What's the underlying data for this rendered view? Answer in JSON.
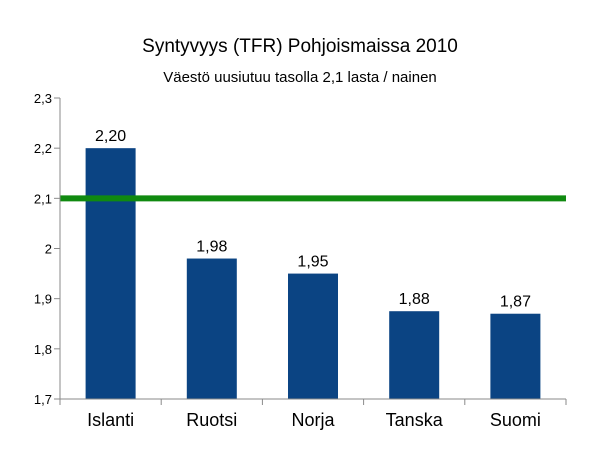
{
  "chart_data": {
    "type": "bar",
    "title": "Syntyvyys (TFR) Pohjoismaissa 2010",
    "subtitle": "Väestö uusiutuu tasolla 2,1 lasta / nainen",
    "xlabel": "",
    "ylabel": "",
    "categories": [
      "Islanti",
      "Ruotsi",
      "Norja",
      "Tanska",
      "Suomi"
    ],
    "values": [
      2.2,
      1.98,
      1.95,
      1.875,
      1.87
    ],
    "data_labels": [
      "2,20",
      "1,98",
      "1,95",
      "1,88",
      "1,87"
    ],
    "ylim": [
      1.7,
      2.3
    ],
    "yticks": [
      1.7,
      1.8,
      1.9,
      2.0,
      2.1,
      2.2,
      2.3
    ],
    "ytick_labels": [
      "1,7",
      "1,8",
      "1,9",
      "2",
      "2,1",
      "2,2",
      "2,3"
    ],
    "reference_line": {
      "value": 2.1,
      "color": "#108a10"
    },
    "bar_color": "#0b4483",
    "grid": false,
    "legend": "none"
  }
}
